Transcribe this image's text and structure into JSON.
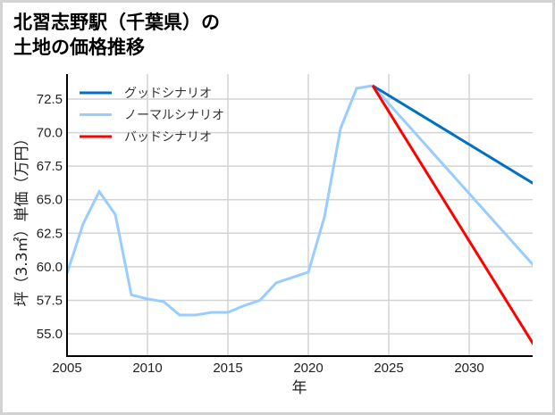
{
  "title": "北習志野駅（千葉県）の\n土地の価格推移",
  "chart_data": {
    "type": "line",
    "title": "北習志野駅（千葉県）の土地の価格推移",
    "xlabel": "年",
    "ylabel": "坪（3.3㎡）単価（万円）",
    "xlim": [
      2005,
      2034
    ],
    "ylim": [
      53.3,
      75.3
    ],
    "x_ticks": [
      2005,
      2010,
      2015,
      2020,
      2025,
      2030
    ],
    "y_ticks": [
      55.0,
      57.5,
      60.0,
      62.5,
      65.0,
      67.5,
      70.0,
      72.5
    ],
    "grid": true,
    "legend_position": "upper left",
    "series": [
      {
        "name": "ノーマルシナリオ",
        "color": "#99ccff",
        "x": [
          2005,
          2006,
          2007,
          2008,
          2009,
          2010,
          2011,
          2012,
          2013,
          2014,
          2015,
          2016,
          2017,
          2018,
          2019,
          2020,
          2021,
          2022,
          2023,
          2024,
          2034
        ],
        "values": [
          59.5,
          63.2,
          65.6,
          63.9,
          57.9,
          57.6,
          57.4,
          56.4,
          56.4,
          56.6,
          56.6,
          57.1,
          57.5,
          58.8,
          59.2,
          59.6,
          63.7,
          70.3,
          73.3,
          73.5,
          60.1
        ]
      },
      {
        "name": "グッドシナリオ",
        "color": "#0070c0",
        "x": [
          2024,
          2034
        ],
        "values": [
          73.5,
          66.2
        ]
      },
      {
        "name": "バッドシナリオ",
        "color": "#ff0000",
        "x": [
          2024,
          2034
        ],
        "values": [
          73.5,
          54.2
        ]
      }
    ]
  },
  "legend": [
    {
      "label": "グッドシナリオ",
      "color": "#0070c0"
    },
    {
      "label": "ノーマルシナリオ",
      "color": "#99ccff"
    },
    {
      "label": "バッドシナリオ",
      "color": "#ff0000"
    }
  ]
}
